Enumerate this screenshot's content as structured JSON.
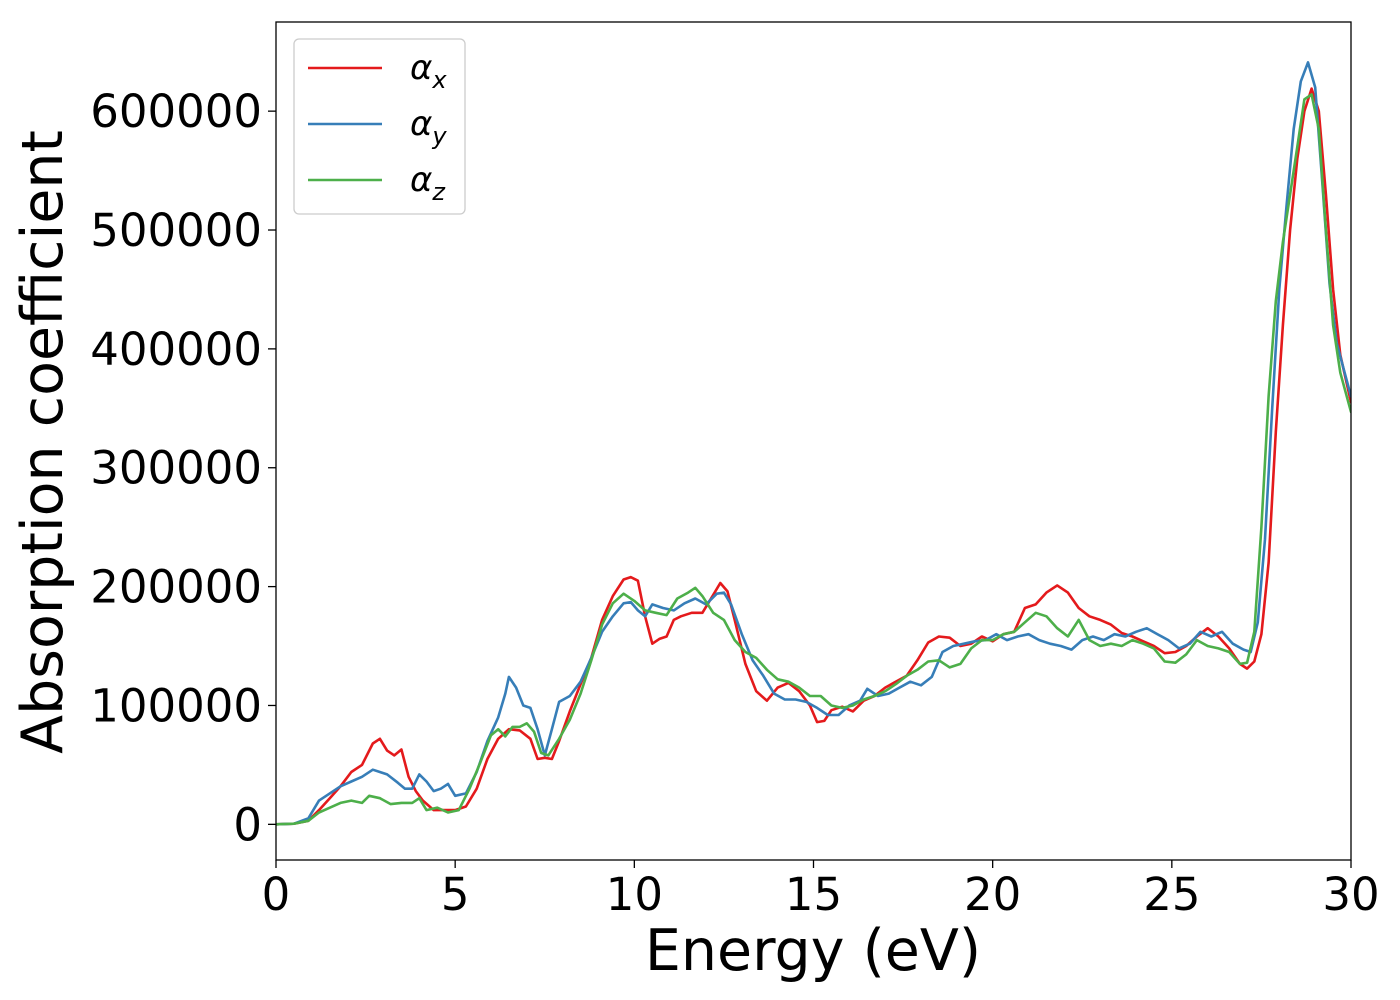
{
  "chart_data": {
    "type": "line",
    "xlabel": "Energy (eV)",
    "ylabel": "Absorption coefficient",
    "xlim": [
      0,
      30
    ],
    "ylim": [
      -30000,
      675000
    ],
    "xticks": [
      0,
      5,
      10,
      15,
      20,
      25,
      30
    ],
    "xtick_labels": [
      "0",
      "5",
      "10",
      "15",
      "20",
      "25",
      "30"
    ],
    "yticks": [
      0,
      100000,
      200000,
      300000,
      400000,
      500000,
      600000
    ],
    "ytick_labels": [
      "0",
      "100000",
      "200000",
      "300000",
      "400000",
      "500000",
      "600000"
    ],
    "grid": false,
    "legend_position": "top-left",
    "series": [
      {
        "name": "α",
        "subscript": "x",
        "color": "#e41a1c",
        "x": [
          0,
          0.5,
          0.9,
          1.2,
          1.5,
          1.8,
          2.1,
          2.4,
          2.7,
          2.9,
          3.1,
          3.3,
          3.5,
          3.7,
          3.9,
          4.1,
          4.4,
          4.7,
          5.0,
          5.3,
          5.6,
          5.9,
          6.2,
          6.5,
          6.8,
          7.1,
          7.3,
          7.5,
          7.7,
          7.9,
          8.2,
          8.5,
          8.8,
          9.1,
          9.4,
          9.7,
          9.9,
          10.1,
          10.3,
          10.5,
          10.7,
          10.9,
          11.1,
          11.3,
          11.6,
          11.9,
          12.2,
          12.4,
          12.6,
          12.8,
          13.1,
          13.4,
          13.7,
          14.0,
          14.3,
          14.6,
          14.9,
          15.1,
          15.3,
          15.5,
          15.8,
          16.1,
          16.4,
          16.7,
          17.0,
          17.3,
          17.6,
          17.9,
          18.2,
          18.5,
          18.8,
          19.1,
          19.4,
          19.7,
          20.0,
          20.3,
          20.6,
          20.9,
          21.2,
          21.5,
          21.8,
          22.1,
          22.4,
          22.7,
          23.0,
          23.3,
          23.6,
          23.9,
          24.2,
          24.5,
          24.8,
          25.1,
          25.4,
          25.7,
          26.0,
          26.3,
          26.6,
          26.9,
          27.1,
          27.3,
          27.5,
          27.7,
          27.9,
          28.1,
          28.3,
          28.5,
          28.7,
          28.9,
          29.1,
          29.3,
          29.5,
          29.7,
          30.0
        ],
        "y": [
          0,
          500,
          3000,
          12000,
          22000,
          32000,
          44000,
          50000,
          68000,
          72000,
          62000,
          58000,
          63000,
          40000,
          28000,
          20000,
          12000,
          12000,
          12000,
          15000,
          30000,
          55000,
          72000,
          80000,
          79000,
          72000,
          55000,
          56000,
          55000,
          70000,
          95000,
          118000,
          140000,
          172000,
          192000,
          206000,
          208000,
          205000,
          175000,
          152000,
          156000,
          158000,
          172000,
          175000,
          178000,
          178000,
          193000,
          203000,
          196000,
          172000,
          135000,
          112000,
          104000,
          115000,
          119000,
          112000,
          100000,
          86000,
          87000,
          96000,
          99000,
          95000,
          104000,
          108000,
          115000,
          120000,
          125000,
          138000,
          153000,
          158000,
          157000,
          150000,
          152000,
          158000,
          154000,
          160000,
          162000,
          182000,
          185000,
          195000,
          201000,
          195000,
          182000,
          175000,
          172000,
          168000,
          161000,
          158000,
          154000,
          150000,
          144000,
          145000,
          150000,
          158000,
          165000,
          158000,
          148000,
          135000,
          131000,
          137000,
          160000,
          220000,
          330000,
          420000,
          500000,
          560000,
          600000,
          619000,
          600000,
          530000,
          450000,
          395000,
          355000
        ]
      },
      {
        "name": "α",
        "subscript": "y",
        "color": "#377eb8",
        "x": [
          0,
          0.5,
          0.9,
          1.2,
          1.5,
          1.8,
          2.1,
          2.4,
          2.7,
          2.9,
          3.1,
          3.4,
          3.6,
          3.8,
          4.0,
          4.2,
          4.4,
          4.6,
          4.8,
          5.0,
          5.3,
          5.6,
          5.9,
          6.2,
          6.4,
          6.5,
          6.7,
          6.9,
          7.1,
          7.3,
          7.5,
          7.7,
          7.9,
          8.2,
          8.5,
          8.8,
          9.1,
          9.4,
          9.7,
          9.9,
          10.1,
          10.3,
          10.5,
          10.8,
          11.1,
          11.4,
          11.7,
          12.0,
          12.3,
          12.5,
          12.7,
          13.0,
          13.3,
          13.6,
          13.9,
          14.2,
          14.5,
          14.8,
          15.1,
          15.4,
          15.7,
          16.0,
          16.3,
          16.5,
          16.8,
          17.1,
          17.4,
          17.7,
          18.0,
          18.3,
          18.6,
          18.9,
          19.2,
          19.5,
          19.8,
          20.1,
          20.4,
          20.7,
          21.0,
          21.3,
          21.6,
          21.9,
          22.2,
          22.5,
          22.8,
          23.1,
          23.4,
          23.7,
          24.0,
          24.3,
          24.6,
          24.9,
          25.2,
          25.5,
          25.8,
          26.1,
          26.4,
          26.7,
          27.0,
          27.2,
          27.4,
          27.6,
          27.8,
          28.0,
          28.2,
          28.4,
          28.6,
          28.8,
          29.0,
          29.2,
          29.4,
          29.6,
          30.0
        ],
        "y": [
          0,
          500,
          5000,
          20000,
          26000,
          32000,
          36000,
          40000,
          46000,
          44000,
          42000,
          35000,
          30000,
          30000,
          42000,
          36000,
          28000,
          30000,
          34000,
          24000,
          26000,
          44000,
          70000,
          90000,
          110000,
          124000,
          115000,
          100000,
          98000,
          80000,
          58000,
          80000,
          103000,
          108000,
          120000,
          140000,
          162000,
          175000,
          186000,
          187000,
          180000,
          175000,
          185000,
          182000,
          180000,
          186000,
          190000,
          185000,
          194000,
          195000,
          185000,
          160000,
          138000,
          125000,
          110000,
          105000,
          105000,
          103000,
          98000,
          92000,
          92000,
          100000,
          104000,
          114000,
          108000,
          110000,
          115000,
          120000,
          117000,
          124000,
          145000,
          150000,
          152000,
          154000,
          155000,
          160000,
          155000,
          158000,
          160000,
          155000,
          152000,
          150000,
          147000,
          155000,
          158000,
          155000,
          160000,
          158000,
          162000,
          165000,
          160000,
          155000,
          148000,
          152000,
          162000,
          158000,
          162000,
          152000,
          147000,
          145000,
          170000,
          240000,
          350000,
          450000,
          520000,
          585000,
          625000,
          641000,
          620000,
          540000,
          455000,
          405000,
          360000
        ]
      },
      {
        "name": "α",
        "subscript": "z",
        "color": "#4daf4a",
        "x": [
          0,
          0.5,
          0.9,
          1.2,
          1.5,
          1.8,
          2.1,
          2.4,
          2.6,
          2.9,
          3.2,
          3.5,
          3.8,
          4.0,
          4.2,
          4.5,
          4.8,
          5.1,
          5.4,
          5.7,
          6.0,
          6.2,
          6.4,
          6.6,
          6.8,
          7.0,
          7.2,
          7.4,
          7.6,
          7.9,
          8.2,
          8.5,
          8.8,
          9.1,
          9.4,
          9.7,
          10.0,
          10.3,
          10.6,
          10.9,
          11.2,
          11.5,
          11.7,
          11.9,
          12.2,
          12.5,
          12.8,
          13.1,
          13.4,
          13.7,
          14.0,
          14.3,
          14.6,
          14.9,
          15.2,
          15.5,
          15.8,
          16.1,
          16.4,
          16.7,
          17.0,
          17.3,
          17.6,
          17.9,
          18.2,
          18.5,
          18.8,
          19.1,
          19.4,
          19.7,
          20.0,
          20.3,
          20.6,
          20.9,
          21.2,
          21.5,
          21.8,
          22.1,
          22.4,
          22.7,
          23.0,
          23.3,
          23.6,
          23.9,
          24.2,
          24.5,
          24.8,
          25.1,
          25.4,
          25.7,
          26.0,
          26.3,
          26.6,
          26.9,
          27.1,
          27.3,
          27.5,
          27.7,
          27.9,
          28.1,
          28.3,
          28.5,
          28.7,
          28.9,
          29.1,
          29.3,
          29.5,
          29.7,
          30.0
        ],
        "y": [
          0,
          500,
          3000,
          10000,
          14000,
          18000,
          20000,
          18000,
          24000,
          22000,
          17000,
          18000,
          18000,
          22000,
          12000,
          14000,
          10000,
          12000,
          30000,
          52000,
          75000,
          80000,
          74000,
          82000,
          82000,
          85000,
          78000,
          60000,
          58000,
          72000,
          88000,
          110000,
          138000,
          168000,
          186000,
          194000,
          188000,
          180000,
          178000,
          176000,
          190000,
          195000,
          199000,
          192000,
          178000,
          172000,
          155000,
          145000,
          140000,
          130000,
          122000,
          120000,
          115000,
          108000,
          108000,
          100000,
          98000,
          100000,
          105000,
          108000,
          112000,
          118000,
          125000,
          130000,
          137000,
          138000,
          132000,
          135000,
          148000,
          155000,
          155000,
          160000,
          162000,
          170000,
          178000,
          175000,
          165000,
          158000,
          172000,
          155000,
          150000,
          152000,
          150000,
          155000,
          152000,
          148000,
          137000,
          136000,
          143000,
          155000,
          150000,
          148000,
          145000,
          135000,
          136000,
          162000,
          250000,
          360000,
          440000,
          490000,
          530000,
          570000,
          610000,
          614000,
          585000,
          500000,
          420000,
          380000,
          347000
        ]
      }
    ]
  }
}
